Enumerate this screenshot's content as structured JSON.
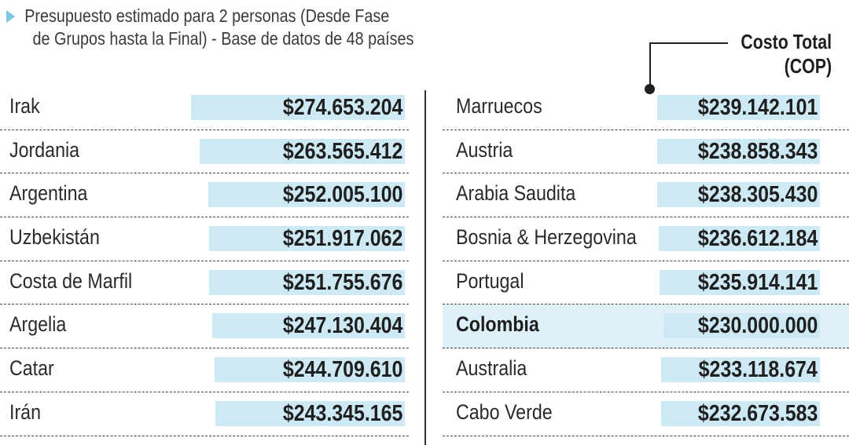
{
  "subtitle": {
    "line1": "Presupuesto estimado para 2 personas (Desde Fase",
    "line2": "de Grupos hasta la Final) - Base de datos de 48 países"
  },
  "legend": {
    "line1": "Costo Total",
    "line2": "(COP)"
  },
  "colors": {
    "bar": "#cde9f3",
    "highlight": "#dff1f8",
    "triangle": "#7cc7e3",
    "text": "#1f1f1f"
  },
  "chart_data": {
    "type": "table",
    "value_label": "Costo Total (COP)",
    "xlim": [
      0,
      274653204
    ],
    "left": [
      {
        "country": "Irak",
        "value": 274653204,
        "label": "$274.653.204"
      },
      {
        "country": "Jordania",
        "value": 263565412,
        "label": "$263.565.412"
      },
      {
        "country": "Argentina",
        "value": 252005100,
        "label": "$252.005.100"
      },
      {
        "country": "Uzbekistán",
        "value": 251917062,
        "label": "$251.917.062"
      },
      {
        "country": "Costa de Marfil",
        "value": 251755676,
        "label": "$251.755.676"
      },
      {
        "country": "Argelia",
        "value": 247130404,
        "label": "$247.130.404"
      },
      {
        "country": "Catar",
        "value": 244709610,
        "label": "$244.709.610"
      },
      {
        "country": "Irán",
        "value": 243345165,
        "label": "$243.345.165"
      }
    ],
    "right": [
      {
        "country": "Marruecos",
        "value": 239142101,
        "label": "$239.142.101"
      },
      {
        "country": "Austria",
        "value": 238858343,
        "label": "$238.858.343"
      },
      {
        "country": "Arabia Saudita",
        "value": 238305430,
        "label": "$238.305.430"
      },
      {
        "country": "Bosnia & Herzegovina",
        "value": 236612184,
        "label": "$236.612.184"
      },
      {
        "country": "Portugal",
        "value": 235914141,
        "label": "$235.914.141"
      },
      {
        "country": "Colombia",
        "value": 230000000,
        "label": "$230.000.000",
        "highlight": true
      },
      {
        "country": "Australia",
        "value": 233118674,
        "label": "$233.118.674"
      },
      {
        "country": "Cabo Verde",
        "value": 232673583,
        "label": "$232.673.583"
      }
    ]
  }
}
